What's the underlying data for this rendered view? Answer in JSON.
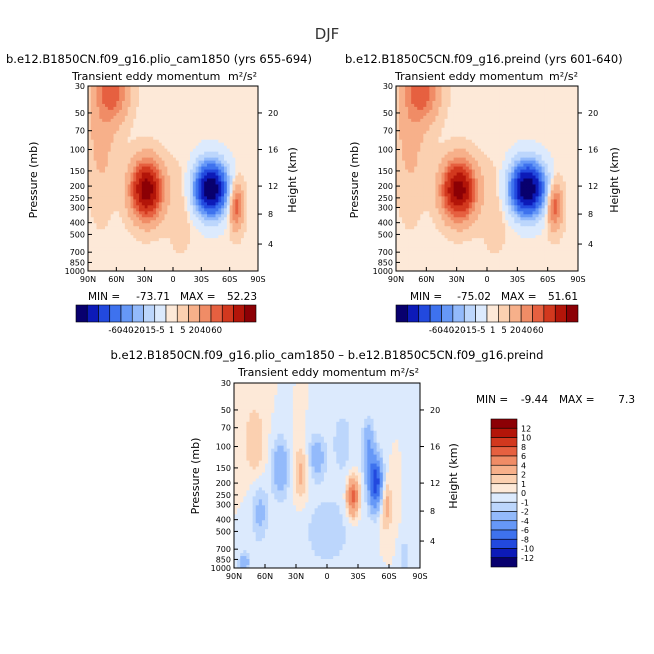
{
  "page_title": "DJF",
  "units_label": "m²/s²",
  "chart_data": [
    {
      "type": "heatmap",
      "title": "b.e12.B1850CN.f09_g16.plio_cam1850 (yrs 655-694)",
      "subtitle": "Transient eddy momentum",
      "units": "m²/s²",
      "ylabel": "Pressure (mb)",
      "ylabel_right": "Height (km)",
      "x_ticks": [
        "90N",
        "60N",
        "30N",
        "0",
        "30S",
        "60S",
        "90S"
      ],
      "y_ticks": [
        "30",
        "50",
        "70",
        "100",
        "150",
        "200",
        "250",
        "300",
        "400",
        "500",
        "700",
        "850",
        "1000"
      ],
      "y_right_ticks": [
        "20",
        "16",
        "12",
        "8",
        "4"
      ],
      "stats": {
        "min_label": "MIN =",
        "min": -73.71,
        "max_label": "MAX =",
        "max": 52.23
      },
      "features": [
        {
          "lat": 28,
          "p": 215,
          "value": 52.23,
          "sx": 11,
          "sy": 0.36
        },
        {
          "lat": 63,
          "p": 33,
          "value": 20,
          "sx": 11,
          "sy": 0.4
        },
        {
          "lat": -40,
          "p": 210,
          "value": -73.71,
          "sx": 11,
          "sy": 0.32
        },
        {
          "lat": -67,
          "p": 290,
          "value": 22,
          "sx": 5,
          "sy": 0.3
        },
        {
          "lat": 76,
          "p": 60,
          "value": 8,
          "sx": 10,
          "sy": 1.0
        },
        {
          "lat": -8,
          "p": 300,
          "value": 3,
          "sx": 10,
          "sy": 0.6
        }
      ]
    },
    {
      "type": "heatmap",
      "title": "b.e12.B1850C5CN.f09_g16.preind (yrs 601-640)",
      "subtitle": "Transient eddy momentum",
      "units": "m²/s²",
      "ylabel": "Pressure (mb)",
      "ylabel_right": "Height (km)",
      "x_ticks": [
        "90N",
        "60N",
        "30N",
        "0",
        "30S",
        "60S",
        "90S"
      ],
      "y_ticks": [
        "30",
        "50",
        "70",
        "100",
        "150",
        "200",
        "250",
        "300",
        "400",
        "500",
        "700",
        "850",
        "1000"
      ],
      "y_right_ticks": [
        "20",
        "16",
        "12",
        "8",
        "4"
      ],
      "stats": {
        "min_label": "MIN =",
        "min": -75.02,
        "max_label": "MAX =",
        "max": 51.61
      },
      "features": [
        {
          "lat": 28,
          "p": 215,
          "value": 51.61,
          "sx": 11,
          "sy": 0.36
        },
        {
          "lat": 63,
          "p": 33,
          "value": 20,
          "sx": 11,
          "sy": 0.4
        },
        {
          "lat": -40,
          "p": 210,
          "value": -75.02,
          "sx": 11,
          "sy": 0.32
        },
        {
          "lat": -67,
          "p": 290,
          "value": 22,
          "sx": 5,
          "sy": 0.3
        },
        {
          "lat": 76,
          "p": 60,
          "value": 8,
          "sx": 10,
          "sy": 1.0
        },
        {
          "lat": -8,
          "p": 300,
          "value": 3,
          "sx": 10,
          "sy": 0.6
        }
      ]
    },
    {
      "type": "heatmap",
      "title": "b.e12.B1850CN.f09_g16.plio_cam1850 – b.e12.B1850C5CN.f09_g16.preind",
      "subtitle": "Transient eddy momentum",
      "units": "m²/s²",
      "ylabel": "Pressure (mb)",
      "ylabel_right": "Height (km)",
      "x_ticks": [
        "90N",
        "60N",
        "30N",
        "0",
        "30S",
        "60S",
        "90S"
      ],
      "y_ticks": [
        "30",
        "50",
        "70",
        "100",
        "150",
        "200",
        "250",
        "300",
        "400",
        "500",
        "700",
        "850",
        "1000"
      ],
      "y_right_ticks": [
        "20",
        "16",
        "12",
        "8",
        "4"
      ],
      "stats": {
        "min_label": "MIN =",
        "min": -9.44,
        "max_label": "MAX =",
        "max": 7.3
      },
      "features": [
        {
          "lat": -47,
          "p": 200,
          "value": -9.44,
          "sx": 5,
          "sy": 0.35
        },
        {
          "lat": -40,
          "p": 100,
          "value": -4,
          "sx": 4,
          "sy": 0.35
        },
        {
          "lat": -25,
          "p": 260,
          "value": 7.3,
          "sx": 4,
          "sy": 0.25
        },
        {
          "lat": -57,
          "p": 300,
          "value": 3,
          "sx": 4,
          "sy": 0.35
        },
        {
          "lat": 10,
          "p": 120,
          "value": -3,
          "sx": 6,
          "sy": 0.3
        },
        {
          "lat": 45,
          "p": 150,
          "value": -3.5,
          "sx": 6,
          "sy": 0.4
        },
        {
          "lat": 65,
          "p": 350,
          "value": -2.5,
          "sx": 6,
          "sy": 0.4
        },
        {
          "lat": 25,
          "p": 170,
          "value": 2.5,
          "sx": 5,
          "sy": 0.4
        },
        {
          "lat": 70,
          "p": 90,
          "value": 2,
          "sx": 7,
          "sy": 0.5
        },
        {
          "lat": -15,
          "p": 90,
          "value": -1.5,
          "sx": 8,
          "sy": 0.5
        },
        {
          "lat": 0,
          "p": 500,
          "value": -1.5,
          "sx": 20,
          "sy": 0.6
        },
        {
          "lat": 80,
          "p": 900,
          "value": -3,
          "sx": 4,
          "sy": 0.15
        },
        {
          "lat": -75,
          "p": 800,
          "value": -2,
          "sx": 3,
          "sy": 0.2
        }
      ]
    }
  ],
  "colorbars": [
    {
      "labels": [
        "-60",
        "-40",
        "-20",
        "-15",
        "-5",
        "1",
        "5",
        "20",
        "40",
        "60"
      ],
      "colors": [
        "#08006e",
        "#0c1ab8",
        "#2249de",
        "#3e72ee",
        "#6698f7",
        "#93bafb",
        "#bcd6fc",
        "#dceafd",
        "#fde9d8",
        "#fbd0b0",
        "#f7b08a",
        "#f08c66",
        "#e66040",
        "#d2381e",
        "#b31509",
        "#8c0005"
      ]
    },
    {
      "labels": [
        "-60",
        "-40",
        "-20",
        "-15",
        "-5",
        "1",
        "5",
        "20",
        "40",
        "60"
      ],
      "colors": [
        "#08006e",
        "#0c1ab8",
        "#2249de",
        "#3e72ee",
        "#6698f7",
        "#93bafb",
        "#bcd6fc",
        "#dceafd",
        "#fde9d8",
        "#fbd0b0",
        "#f7b08a",
        "#f08c66",
        "#e66040",
        "#d2381e",
        "#b31509",
        "#8c0005"
      ]
    },
    {
      "labels": [
        "12",
        "10",
        "8",
        "6",
        "4",
        "2",
        "1",
        "0",
        "-1",
        "-2",
        "-4",
        "-6",
        "-8",
        "-10",
        "-12"
      ],
      "colors": [
        "#8c0005",
        "#b31509",
        "#d2381e",
        "#e66040",
        "#f08c66",
        "#f7b08a",
        "#fbd0b0",
        "#fde9d8",
        "#dceafd",
        "#bcd6fc",
        "#93bafb",
        "#6698f7",
        "#3e72ee",
        "#2249de",
        "#0c1ab8",
        "#08006e"
      ]
    }
  ]
}
